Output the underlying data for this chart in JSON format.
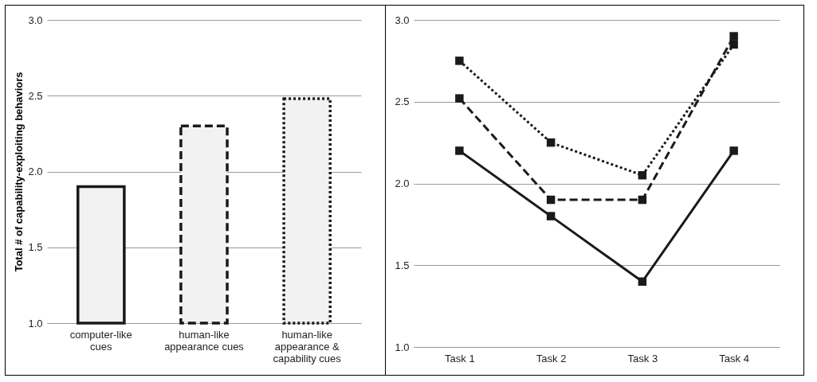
{
  "chart_data": [
    {
      "type": "bar",
      "ylabel": "Total # of capability-exploiting behaviors",
      "categories": [
        "computer-like cues",
        "human-like appearance cues",
        "human-like appearance & capability cues"
      ],
      "ylim": [
        1,
        3
      ],
      "yticks": [
        {
          "value": 1,
          "label": "1.0"
        },
        {
          "value": 1.5,
          "label": "1.5"
        },
        {
          "value": 2,
          "label": "2.0"
        },
        {
          "value": 2.5,
          "label": "2.5"
        },
        {
          "value": 3,
          "label": "3.0"
        }
      ],
      "grid": "y",
      "series": [
        {
          "color": "#f2f2f2",
          "line_style": "solid",
          "values": [
            1.9,
            null,
            null
          ]
        },
        {
          "color": "#f2f2f2",
          "line_style": "dashed",
          "values": [
            null,
            2.3,
            null
          ]
        },
        {
          "color": "#f2f2f2",
          "line_style": "dotted",
          "values": [
            null,
            null,
            2.48
          ]
        }
      ]
    },
    {
      "type": "line",
      "categories": [
        "Task 1",
        "Task 2",
        "Task 3",
        "Task 4"
      ],
      "ylim": [
        1,
        3
      ],
      "yticks": [
        {
          "value": 1,
          "label": "1.0"
        },
        {
          "value": 1.5,
          "label": "1.5"
        },
        {
          "value": 2,
          "label": "2.0"
        },
        {
          "value": 2.5,
          "label": "2.5"
        },
        {
          "value": 3,
          "label": "3.0"
        }
      ],
      "grid": "y",
      "marker": "square",
      "series": [
        {
          "color": "#1a1a1a",
          "line_style": "solid",
          "values": [
            2.2,
            1.8,
            1.4,
            2.2
          ]
        },
        {
          "color": "#1a1a1a",
          "line_style": "dashed",
          "values": [
            2.52,
            1.9,
            1.9,
            2.9
          ]
        },
        {
          "color": "#1a1a1a",
          "line_style": "dotted",
          "values": [
            2.75,
            2.25,
            2.05,
            2.85
          ]
        }
      ]
    }
  ]
}
